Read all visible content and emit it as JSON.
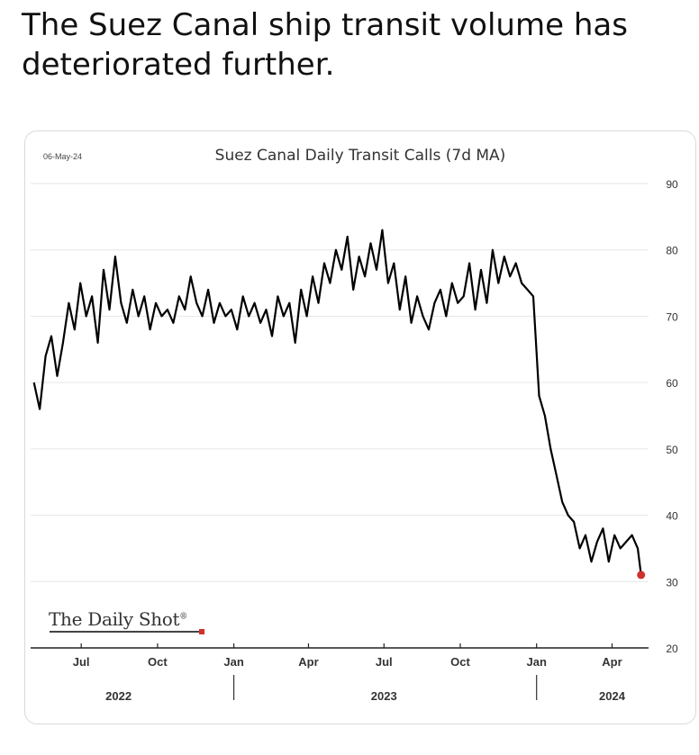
{
  "tweet": {
    "text": "The Suez Canal ship transit volume has deteriorated further."
  },
  "chart_data": {
    "type": "line",
    "title": "Suez Canal Daily Transit Calls (7d MA)",
    "date_stamp": "06-May-24",
    "source": "The Daily Shot",
    "source_mark": "®",
    "xlabel": "",
    "ylabel": "",
    "ylim": [
      20,
      90
    ],
    "y_ticks": [
      20,
      30,
      40,
      50,
      60,
      70,
      80,
      90
    ],
    "y_axis_position": "right",
    "grid": true,
    "x_range": [
      "2022-05-01",
      "2024-05-15"
    ],
    "x_ticks": [
      {
        "label": "Jul",
        "date": "2022-07-01"
      },
      {
        "label": "Oct",
        "date": "2022-10-01"
      },
      {
        "label": "Jan",
        "date": "2023-01-01"
      },
      {
        "label": "Apr",
        "date": "2023-04-01"
      },
      {
        "label": "Jul",
        "date": "2023-07-01"
      },
      {
        "label": "Oct",
        "date": "2023-10-01"
      },
      {
        "label": "Jan",
        "date": "2024-01-01"
      },
      {
        "label": "Apr",
        "date": "2024-04-01"
      }
    ],
    "year_labels": [
      {
        "label": "2022",
        "date": "2022-08-15"
      },
      {
        "label": "2023",
        "date": "2023-07-01"
      },
      {
        "label": "2024",
        "date": "2024-04-01"
      }
    ],
    "year_dividers": [
      "2023-01-01",
      "2024-01-01"
    ],
    "line_color": "#000000",
    "last_point_color": "#d0312d",
    "series": [
      {
        "name": "",
        "x": [
          "2022-05-05",
          "2022-05-12",
          "2022-05-19",
          "2022-05-26",
          "2022-06-02",
          "2022-06-09",
          "2022-06-16",
          "2022-06-23",
          "2022-06-30",
          "2022-07-07",
          "2022-07-14",
          "2022-07-21",
          "2022-07-28",
          "2022-08-04",
          "2022-08-11",
          "2022-08-18",
          "2022-08-25",
          "2022-09-01",
          "2022-09-08",
          "2022-09-15",
          "2022-09-22",
          "2022-09-29",
          "2022-10-06",
          "2022-10-13",
          "2022-10-20",
          "2022-10-27",
          "2022-11-03",
          "2022-11-10",
          "2022-11-17",
          "2022-11-24",
          "2022-12-01",
          "2022-12-08",
          "2022-12-15",
          "2022-12-22",
          "2022-12-29",
          "2023-01-05",
          "2023-01-12",
          "2023-01-19",
          "2023-01-26",
          "2023-02-02",
          "2023-02-09",
          "2023-02-16",
          "2023-02-23",
          "2023-03-02",
          "2023-03-09",
          "2023-03-16",
          "2023-03-23",
          "2023-03-30",
          "2023-04-06",
          "2023-04-13",
          "2023-04-20",
          "2023-04-27",
          "2023-05-04",
          "2023-05-11",
          "2023-05-18",
          "2023-05-25",
          "2023-06-01",
          "2023-06-08",
          "2023-06-15",
          "2023-06-22",
          "2023-06-29",
          "2023-07-06",
          "2023-07-13",
          "2023-07-20",
          "2023-07-27",
          "2023-08-03",
          "2023-08-10",
          "2023-08-17",
          "2023-08-24",
          "2023-08-31",
          "2023-09-07",
          "2023-09-14",
          "2023-09-21",
          "2023-09-28",
          "2023-10-05",
          "2023-10-12",
          "2023-10-19",
          "2023-10-26",
          "2023-11-02",
          "2023-11-09",
          "2023-11-16",
          "2023-11-23",
          "2023-11-30",
          "2023-12-07",
          "2023-12-14",
          "2023-12-21",
          "2023-12-28",
          "2024-01-04",
          "2024-01-11",
          "2024-01-18",
          "2024-01-25",
          "2024-02-01",
          "2024-02-08",
          "2024-02-15",
          "2024-02-22",
          "2024-02-29",
          "2024-03-07",
          "2024-03-14",
          "2024-03-21",
          "2024-03-28",
          "2024-04-04",
          "2024-04-11",
          "2024-04-18",
          "2024-04-25",
          "2024-05-02",
          "2024-05-06"
        ],
        "values": [
          60,
          56,
          64,
          67,
          61,
          66,
          72,
          68,
          75,
          70,
          73,
          66,
          77,
          71,
          79,
          72,
          69,
          74,
          70,
          73,
          68,
          72,
          70,
          71,
          69,
          73,
          71,
          76,
          72,
          70,
          74,
          69,
          72,
          70,
          71,
          68,
          73,
          70,
          72,
          69,
          71,
          67,
          73,
          70,
          72,
          66,
          74,
          70,
          76,
          72,
          78,
          75,
          80,
          77,
          82,
          74,
          79,
          76,
          81,
          77,
          83,
          75,
          78,
          71,
          76,
          69,
          73,
          70,
          68,
          72,
          74,
          70,
          75,
          72,
          73,
          78,
          71,
          77,
          72,
          80,
          75,
          79,
          76,
          78,
          75,
          74,
          73,
          58,
          55,
          50,
          46,
          42,
          40,
          39,
          35,
          37,
          33,
          36,
          38,
          33,
          37,
          35,
          36,
          37,
          35,
          31
        ]
      }
    ],
    "last_value": 31
  }
}
